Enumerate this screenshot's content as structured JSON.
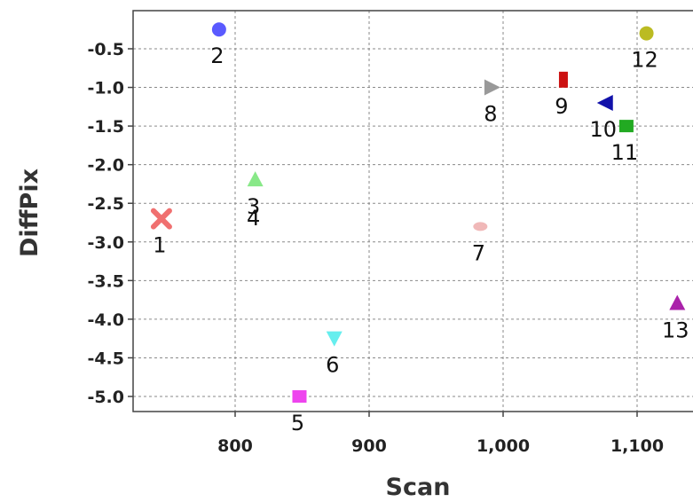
{
  "chart_data": {
    "type": "scatter",
    "xlabel": "Scan",
    "ylabel": "DiffPix",
    "x_ticks": [
      "800",
      "900",
      "1,000",
      "1,100"
    ],
    "x_tick_values": [
      800,
      900,
      1000,
      1100
    ],
    "y_ticks": [
      "-0.5",
      "-1.0",
      "-1.5",
      "-2.0",
      "-2.5",
      "-3.0",
      "-3.5",
      "-4.0",
      "-4.5",
      "-5.0"
    ],
    "y_tick_values": [
      -0.5,
      -1.0,
      -1.5,
      -2.0,
      -2.5,
      -3.0,
      -3.5,
      -4.0,
      -4.5,
      -5.0
    ],
    "xlim": [
      740,
      1140
    ],
    "ylim": [
      -5.2,
      -0.05
    ],
    "grid": true,
    "points": [
      {
        "label": "1",
        "x": 745,
        "y": -2.7,
        "marker": "x",
        "color": "#f07070"
      },
      {
        "label": "2",
        "x": 788,
        "y": -0.25,
        "marker": "circle",
        "color": "#5a5aff"
      },
      {
        "label": "3",
        "x": 815,
        "y": -2.2,
        "marker": "triangle-up",
        "color": "#88e888"
      },
      {
        "label": "4",
        "x": 815,
        "y": -2.35,
        "marker": "none",
        "color": "#888888"
      },
      {
        "label": "5",
        "x": 848,
        "y": -5.0,
        "marker": "square",
        "color": "#ee44ee"
      },
      {
        "label": "6",
        "x": 874,
        "y": -4.25,
        "marker": "triangle-down",
        "color": "#66eeee"
      },
      {
        "label": "7",
        "x": 983,
        "y": -2.8,
        "marker": "ellipse",
        "color": "#f0b8b8"
      },
      {
        "label": "8",
        "x": 992,
        "y": -1.0,
        "marker": "triangle-right",
        "color": "#999999"
      },
      {
        "label": "9",
        "x": 1045,
        "y": -0.9,
        "marker": "rect-v",
        "color": "#cc1111"
      },
      {
        "label": "10",
        "x": 1076,
        "y": -1.2,
        "marker": "triangle-left",
        "color": "#1111aa"
      },
      {
        "label": "11",
        "x": 1092,
        "y": -1.5,
        "marker": "square",
        "color": "#22aa22"
      },
      {
        "label": "12",
        "x": 1107,
        "y": -0.3,
        "marker": "circle",
        "color": "#bbbb22"
      },
      {
        "label": "13",
        "x": 1130,
        "y": -3.8,
        "marker": "triangle-up",
        "color": "#aa22aa"
      }
    ]
  }
}
